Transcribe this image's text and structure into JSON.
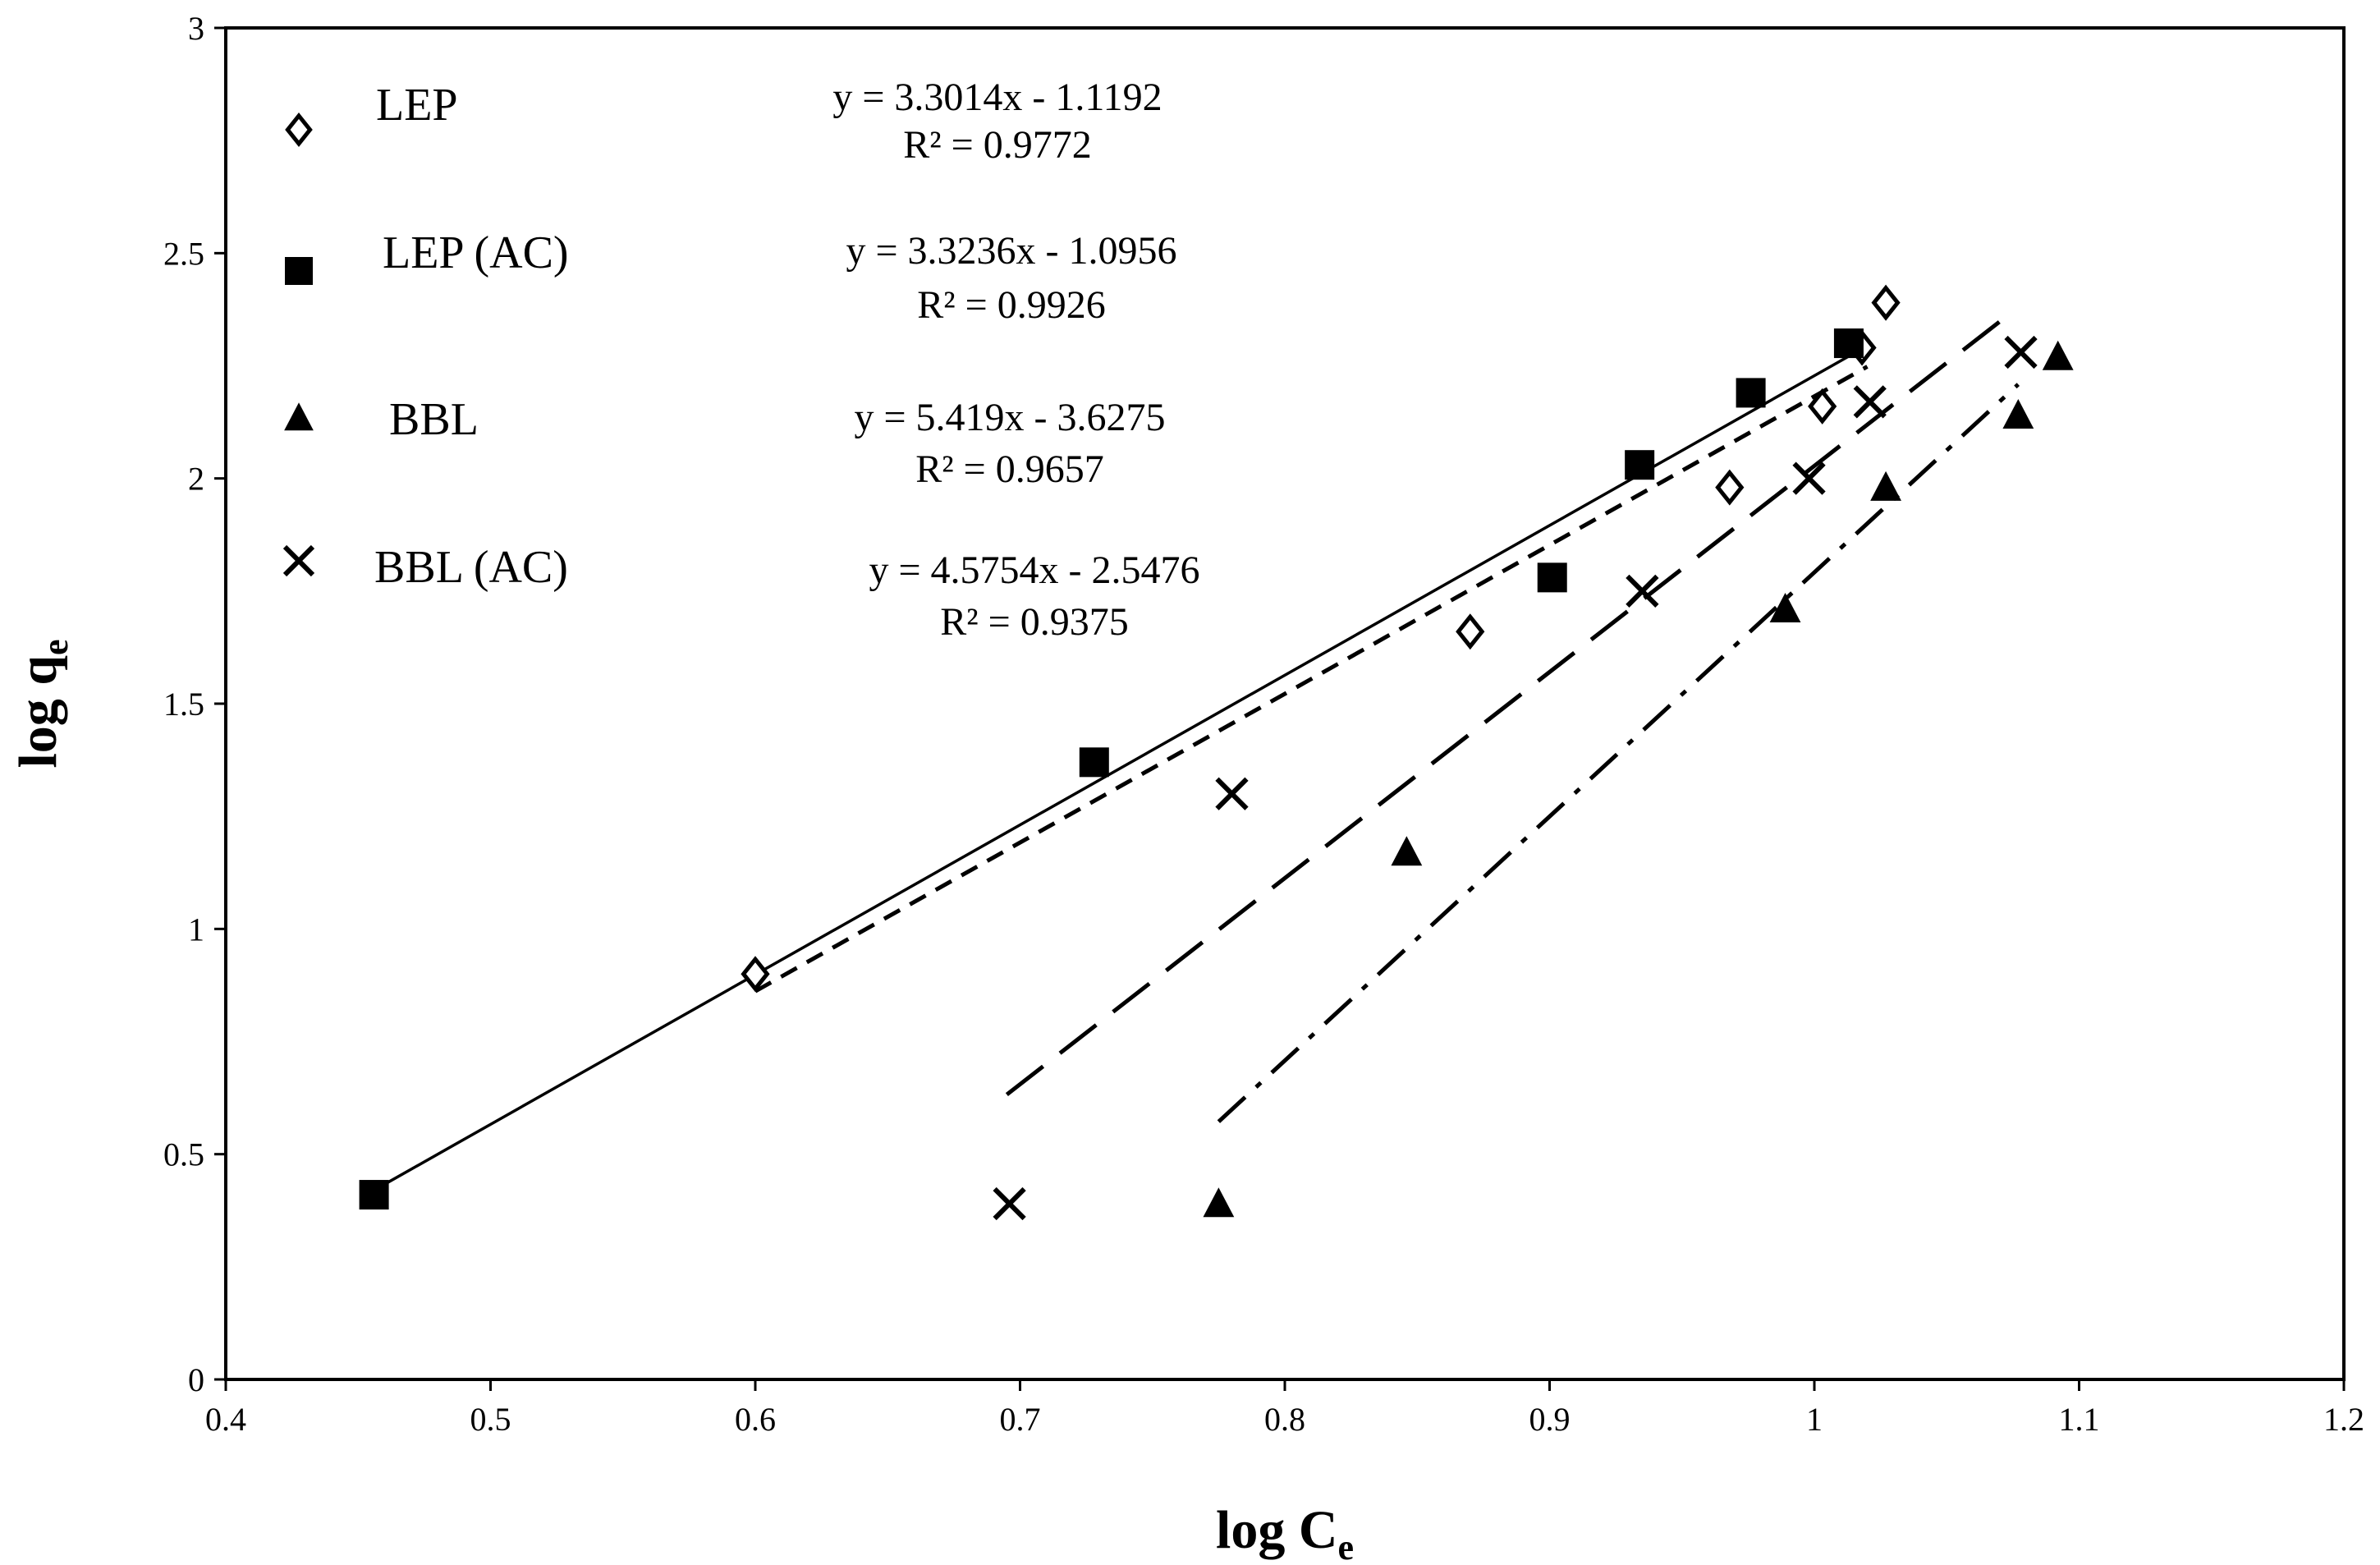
{
  "chart_data": {
    "type": "scatter",
    "title": "",
    "xlabel": "log C",
    "xlabel_sub": "e",
    "ylabel": "log q",
    "ylabel_sub": "e",
    "xlim": [
      0.4,
      1.2
    ],
    "ylim": [
      0,
      3
    ],
    "xticks": [
      0.4,
      0.5,
      0.6,
      0.7,
      0.8,
      0.9,
      1,
      1.1,
      1.2
    ],
    "xtick_labels": [
      "0.4",
      "0.5",
      "0.6",
      "0.7",
      "0.8",
      "0.9",
      "1",
      "1.1",
      "1.2"
    ],
    "yticks": [
      0,
      0.5,
      1,
      1.5,
      2,
      2.5,
      3
    ],
    "ytick_labels": [
      "0",
      "0.5",
      "1",
      "1.5",
      "2",
      "2.5",
      "3"
    ],
    "grid": false,
    "legend_position": "top-left",
    "series": [
      {
        "name": "LEP",
        "marker": "diamond-open",
        "color": "#000000",
        "x": [
          0.6,
          0.87,
          0.968,
          1.003,
          1.018,
          1.027
        ],
        "y": [
          0.9,
          1.66,
          1.98,
          2.16,
          2.29,
          2.39
        ],
        "fit": {
          "slope": 3.3014,
          "intercept": -1.1192,
          "x_range": [
            0.6,
            1.02
          ],
          "style": "short-dash"
        },
        "equation": "y = 3.3014x - 1.1192",
        "r2": "R² = 0.9772"
      },
      {
        "name": "LEP (AC)",
        "marker": "square-filled",
        "color": "#000000",
        "x": [
          0.456,
          0.728,
          0.901,
          0.934,
          0.976,
          1.013
        ],
        "y": [
          0.41,
          1.37,
          1.78,
          2.03,
          2.19,
          2.3
        ],
        "fit": {
          "slope": 3.3236,
          "intercept": -1.0956,
          "x_range": [
            0.456,
            1.013
          ],
          "style": "solid"
        },
        "equation": "y = 3.3236x - 1.0956",
        "r2": "R² = 0.9926"
      },
      {
        "name": "BBL",
        "marker": "triangle-filled",
        "color": "#000000",
        "x": [
          0.775,
          0.846,
          0.989,
          1.027,
          1.077,
          1.092
        ],
        "y": [
          0.39,
          1.17,
          1.71,
          1.98,
          2.14,
          2.27
        ],
        "fit": {
          "slope": 5.419,
          "intercept": -3.6275,
          "x_range": [
            0.775,
            1.077
          ],
          "style": "dash-dot"
        },
        "equation": "y = 5.419x - 3.6275",
        "r2": "R² = 0.9657"
      },
      {
        "name": "BBL (AC)",
        "marker": "x",
        "color": "#000000",
        "x": [
          0.696,
          0.78,
          0.935,
          0.998,
          1.021,
          1.078
        ],
        "y": [
          0.39,
          1.3,
          1.75,
          2.0,
          2.17,
          2.28
        ],
        "fit": {
          "slope": 4.5754,
          "intercept": -2.5476,
          "x_range": [
            0.695,
            1.075
          ],
          "style": "long-dash"
        },
        "equation": "y = 4.5754x - 2.5476",
        "r2": "R² = 0.9375"
      }
    ]
  }
}
